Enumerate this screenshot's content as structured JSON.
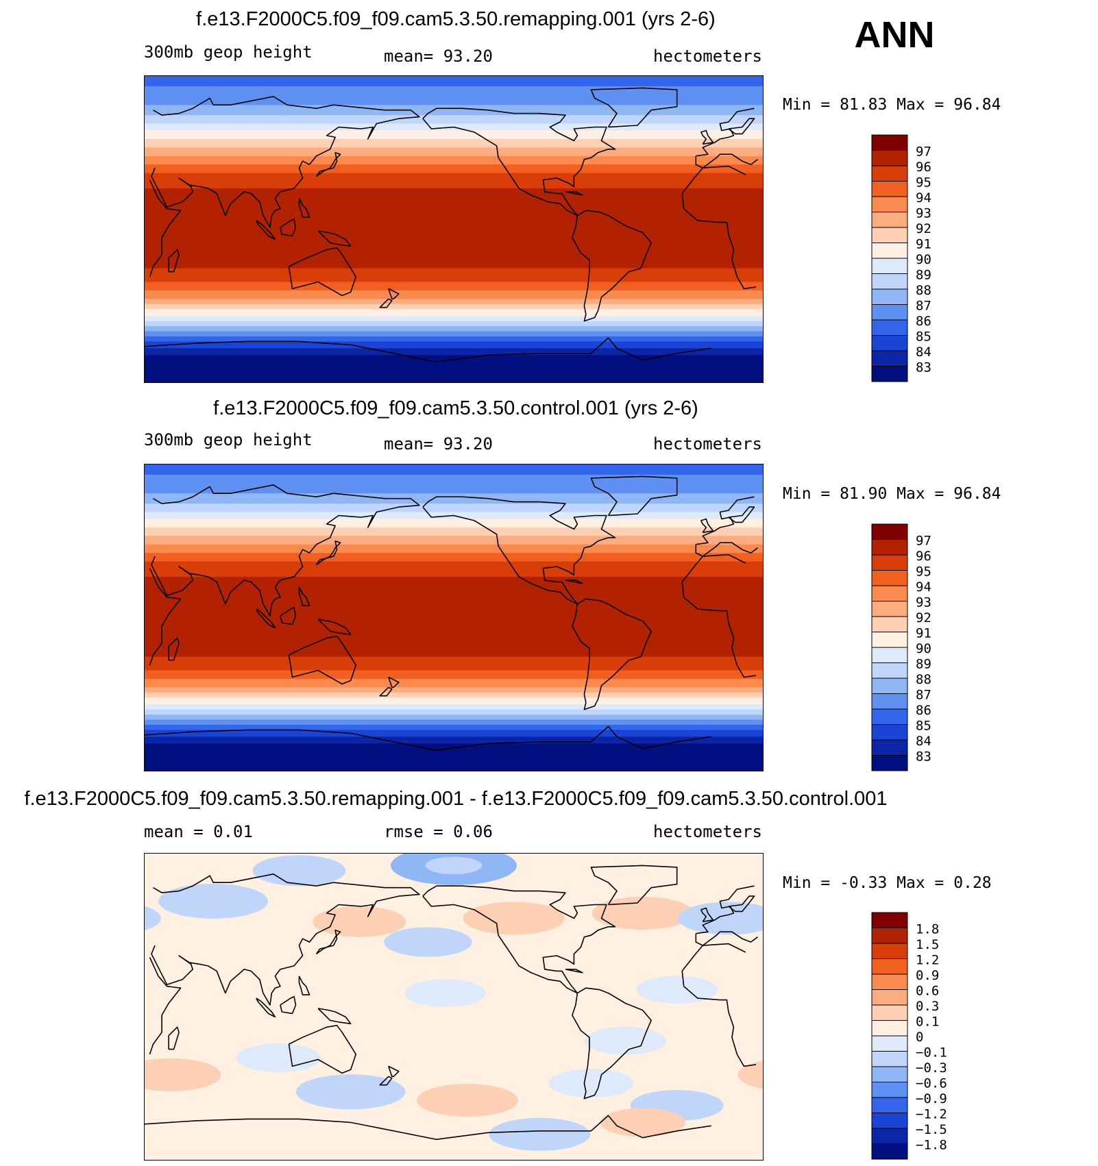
{
  "page_label": "ANN",
  "coastline_color": "#000000",
  "panels": [
    {
      "title": "f.e13.F2000C5.f09_f09.cam5.3.50.remapping.001 (yrs 2-6)",
      "subtitle_left": "300mb geop height",
      "subtitle_mid": "mean=   93.20",
      "subtitle_right": "hectometers",
      "minmax": "Min =   81.83 Max =   96.84"
    },
    {
      "title": "f.e13.F2000C5.f09_f09.cam5.3.50.control.001 (yrs 2-6)",
      "subtitle_left": "300mb geop height",
      "subtitle_mid": "mean=   93.20",
      "subtitle_right": "hectometers",
      "minmax": "Min =   81.90 Max =   96.84"
    },
    {
      "title": "f.e13.F2000C5.f09_f09.cam5.3.50.remapping.001 - f.e13.F2000C5.f09_f09.cam5.3.50.control.001",
      "subtitle_left": "mean =    0.01",
      "subtitle_mid": "rmse =    0.06",
      "subtitle_right": "hectometers",
      "minmax": "Min =  -0.33 Max =    0.28"
    }
  ],
  "chart_data": [
    {
      "type": "heatmap",
      "title": "f.e13.F2000C5.f09_f09.cam5.3.50.remapping.001 (yrs 2-6)",
      "variable": "300mb geop height",
      "units": "hectometers",
      "mean": 93.2,
      "min": 81.83,
      "max": 96.84,
      "colorbar_levels": [
        "97",
        "96",
        "95",
        "94",
        "93",
        "92",
        "91",
        "90",
        "89",
        "88",
        "87",
        "86",
        "85",
        "84",
        "83"
      ],
      "colors": [
        "#800000",
        "#b22200",
        "#d93d08",
        "#f2601f",
        "#fa8a4d",
        "#fcad80",
        "#fdd0b3",
        "#fff0e1",
        "#deeafa",
        "#bfd6fa",
        "#8fb6f5",
        "#5e91f2",
        "#3366eb",
        "#1a44d6",
        "#0a26a6",
        "#001080"
      ],
      "lat_profile": [
        {
          "lat": 90,
          "value": 85.6
        },
        {
          "lat": 82,
          "value": 86.1
        },
        {
          "lat": 74,
          "value": 86.9
        },
        {
          "lat": 66,
          "value": 88.2
        },
        {
          "lat": 58,
          "value": 89.9
        },
        {
          "lat": 50,
          "value": 91.6
        },
        {
          "lat": 42,
          "value": 93.3
        },
        {
          "lat": 34,
          "value": 94.8
        },
        {
          "lat": 26,
          "value": 95.9
        },
        {
          "lat": 18,
          "value": 96.4
        },
        {
          "lat": 0,
          "value": 96.6
        },
        {
          "lat": -18,
          "value": 96.4
        },
        {
          "lat": -26,
          "value": 95.8
        },
        {
          "lat": -34,
          "value": 94.5
        },
        {
          "lat": -42,
          "value": 92.7
        },
        {
          "lat": -50,
          "value": 90.2
        },
        {
          "lat": -56,
          "value": 88.3
        },
        {
          "lat": -62,
          "value": 86.3
        },
        {
          "lat": -68,
          "value": 84.4
        },
        {
          "lat": -74,
          "value": 83.0
        },
        {
          "lat": -82,
          "value": 82.1
        },
        {
          "lat": -90,
          "value": 81.8
        }
      ]
    },
    {
      "type": "heatmap",
      "title": "f.e13.F2000C5.f09_f09.cam5.3.50.control.001 (yrs 2-6)",
      "variable": "300mb geop height",
      "units": "hectometers",
      "mean": 93.2,
      "min": 81.9,
      "max": 96.84,
      "colorbar_levels": [
        "97",
        "96",
        "95",
        "94",
        "93",
        "92",
        "91",
        "90",
        "89",
        "88",
        "87",
        "86",
        "85",
        "84",
        "83"
      ],
      "colors": [
        "#800000",
        "#b22200",
        "#d93d08",
        "#f2601f",
        "#fa8a4d",
        "#fcad80",
        "#fdd0b3",
        "#fff0e1",
        "#deeafa",
        "#bfd6fa",
        "#8fb6f5",
        "#5e91f2",
        "#3366eb",
        "#1a44d6",
        "#0a26a6",
        "#001080"
      ],
      "lat_profile": [
        {
          "lat": 90,
          "value": 85.6
        },
        {
          "lat": 82,
          "value": 86.1
        },
        {
          "lat": 74,
          "value": 86.9
        },
        {
          "lat": 66,
          "value": 88.2
        },
        {
          "lat": 58,
          "value": 89.9
        },
        {
          "lat": 50,
          "value": 91.6
        },
        {
          "lat": 42,
          "value": 93.3
        },
        {
          "lat": 34,
          "value": 94.8
        },
        {
          "lat": 26,
          "value": 95.9
        },
        {
          "lat": 18,
          "value": 96.4
        },
        {
          "lat": 0,
          "value": 96.6
        },
        {
          "lat": -18,
          "value": 96.4
        },
        {
          "lat": -26,
          "value": 95.8
        },
        {
          "lat": -34,
          "value": 94.5
        },
        {
          "lat": -42,
          "value": 92.7
        },
        {
          "lat": -50,
          "value": 90.2
        },
        {
          "lat": -56,
          "value": 88.3
        },
        {
          "lat": -62,
          "value": 86.3
        },
        {
          "lat": -68,
          "value": 84.4
        },
        {
          "lat": -74,
          "value": 83.0
        },
        {
          "lat": -82,
          "value": 82.1
        },
        {
          "lat": -90,
          "value": 81.9
        }
      ]
    },
    {
      "type": "heatmap",
      "title": "f.e13.F2000C5.f09_f09.cam5.3.50.remapping.001 - f.e13.F2000C5.f09_f09.cam5.3.50.control.001",
      "units": "hectometers",
      "mean": 0.01,
      "rmse": 0.06,
      "min": -0.33,
      "max": 0.28,
      "colorbar_levels": [
        "1.8",
        "1.5",
        "1.2",
        "0.9",
        "0.6",
        "0.3",
        "0.1",
        "0",
        "−0.1",
        "−0.3",
        "−0.6",
        "−0.9",
        "−1.2",
        "−1.5",
        "−1.8"
      ],
      "colors": [
        "#800000",
        "#b22200",
        "#d93d08",
        "#f2601f",
        "#fa8a4d",
        "#fcad80",
        "#fdd0b3",
        "#fff0e1",
        "#deeafa",
        "#bfd6fa",
        "#8fb6f5",
        "#5e91f2",
        "#3366eb",
        "#1a44d6",
        "#0a26a6",
        "#001080"
      ],
      "background_value": 0.05,
      "anomalies": [
        {
          "lon": 120,
          "lat": 80,
          "value": -0.15
        },
        {
          "lon": 210,
          "lat": 83,
          "value": -0.35
        },
        {
          "lon": 15,
          "lat": 80,
          "value": 0.08
        },
        {
          "lon": 300,
          "lat": 78,
          "value": 0.08
        },
        {
          "lon": 355,
          "lat": 82,
          "value": 0.08
        },
        {
          "lon": 70,
          "lat": 62,
          "value": -0.25
        },
        {
          "lon": 155,
          "lat": 50,
          "value": 0.15
        },
        {
          "lon": 245,
          "lat": 52,
          "value": 0.2
        },
        {
          "lon": 320,
          "lat": 55,
          "value": 0.2
        },
        {
          "lon": 10,
          "lat": 52,
          "value": -0.2
        },
        {
          "lon": 195,
          "lat": 38,
          "value": -0.12
        },
        {
          "lon": 205,
          "lat": 8,
          "value": -0.08
        },
        {
          "lon": 175,
          "lat": -15,
          "value": 0.06
        },
        {
          "lon": 75,
          "lat": -5,
          "value": 0.05
        },
        {
          "lon": 340,
          "lat": 10,
          "value": -0.08
        },
        {
          "lon": 310,
          "lat": -20,
          "value": -0.08
        },
        {
          "lon": 45,
          "lat": -40,
          "value": 0.2
        },
        {
          "lon": 108,
          "lat": -30,
          "value": -0.1
        },
        {
          "lon": 150,
          "lat": -50,
          "value": -0.25
        },
        {
          "lon": 218,
          "lat": -55,
          "value": 0.2
        },
        {
          "lon": 290,
          "lat": -45,
          "value": -0.1
        },
        {
          "lon": 340,
          "lat": -58,
          "value": -0.15
        },
        {
          "lon": 260,
          "lat": -75,
          "value": -0.2
        },
        {
          "lon": 320,
          "lat": -68,
          "value": 0.1
        }
      ]
    }
  ]
}
